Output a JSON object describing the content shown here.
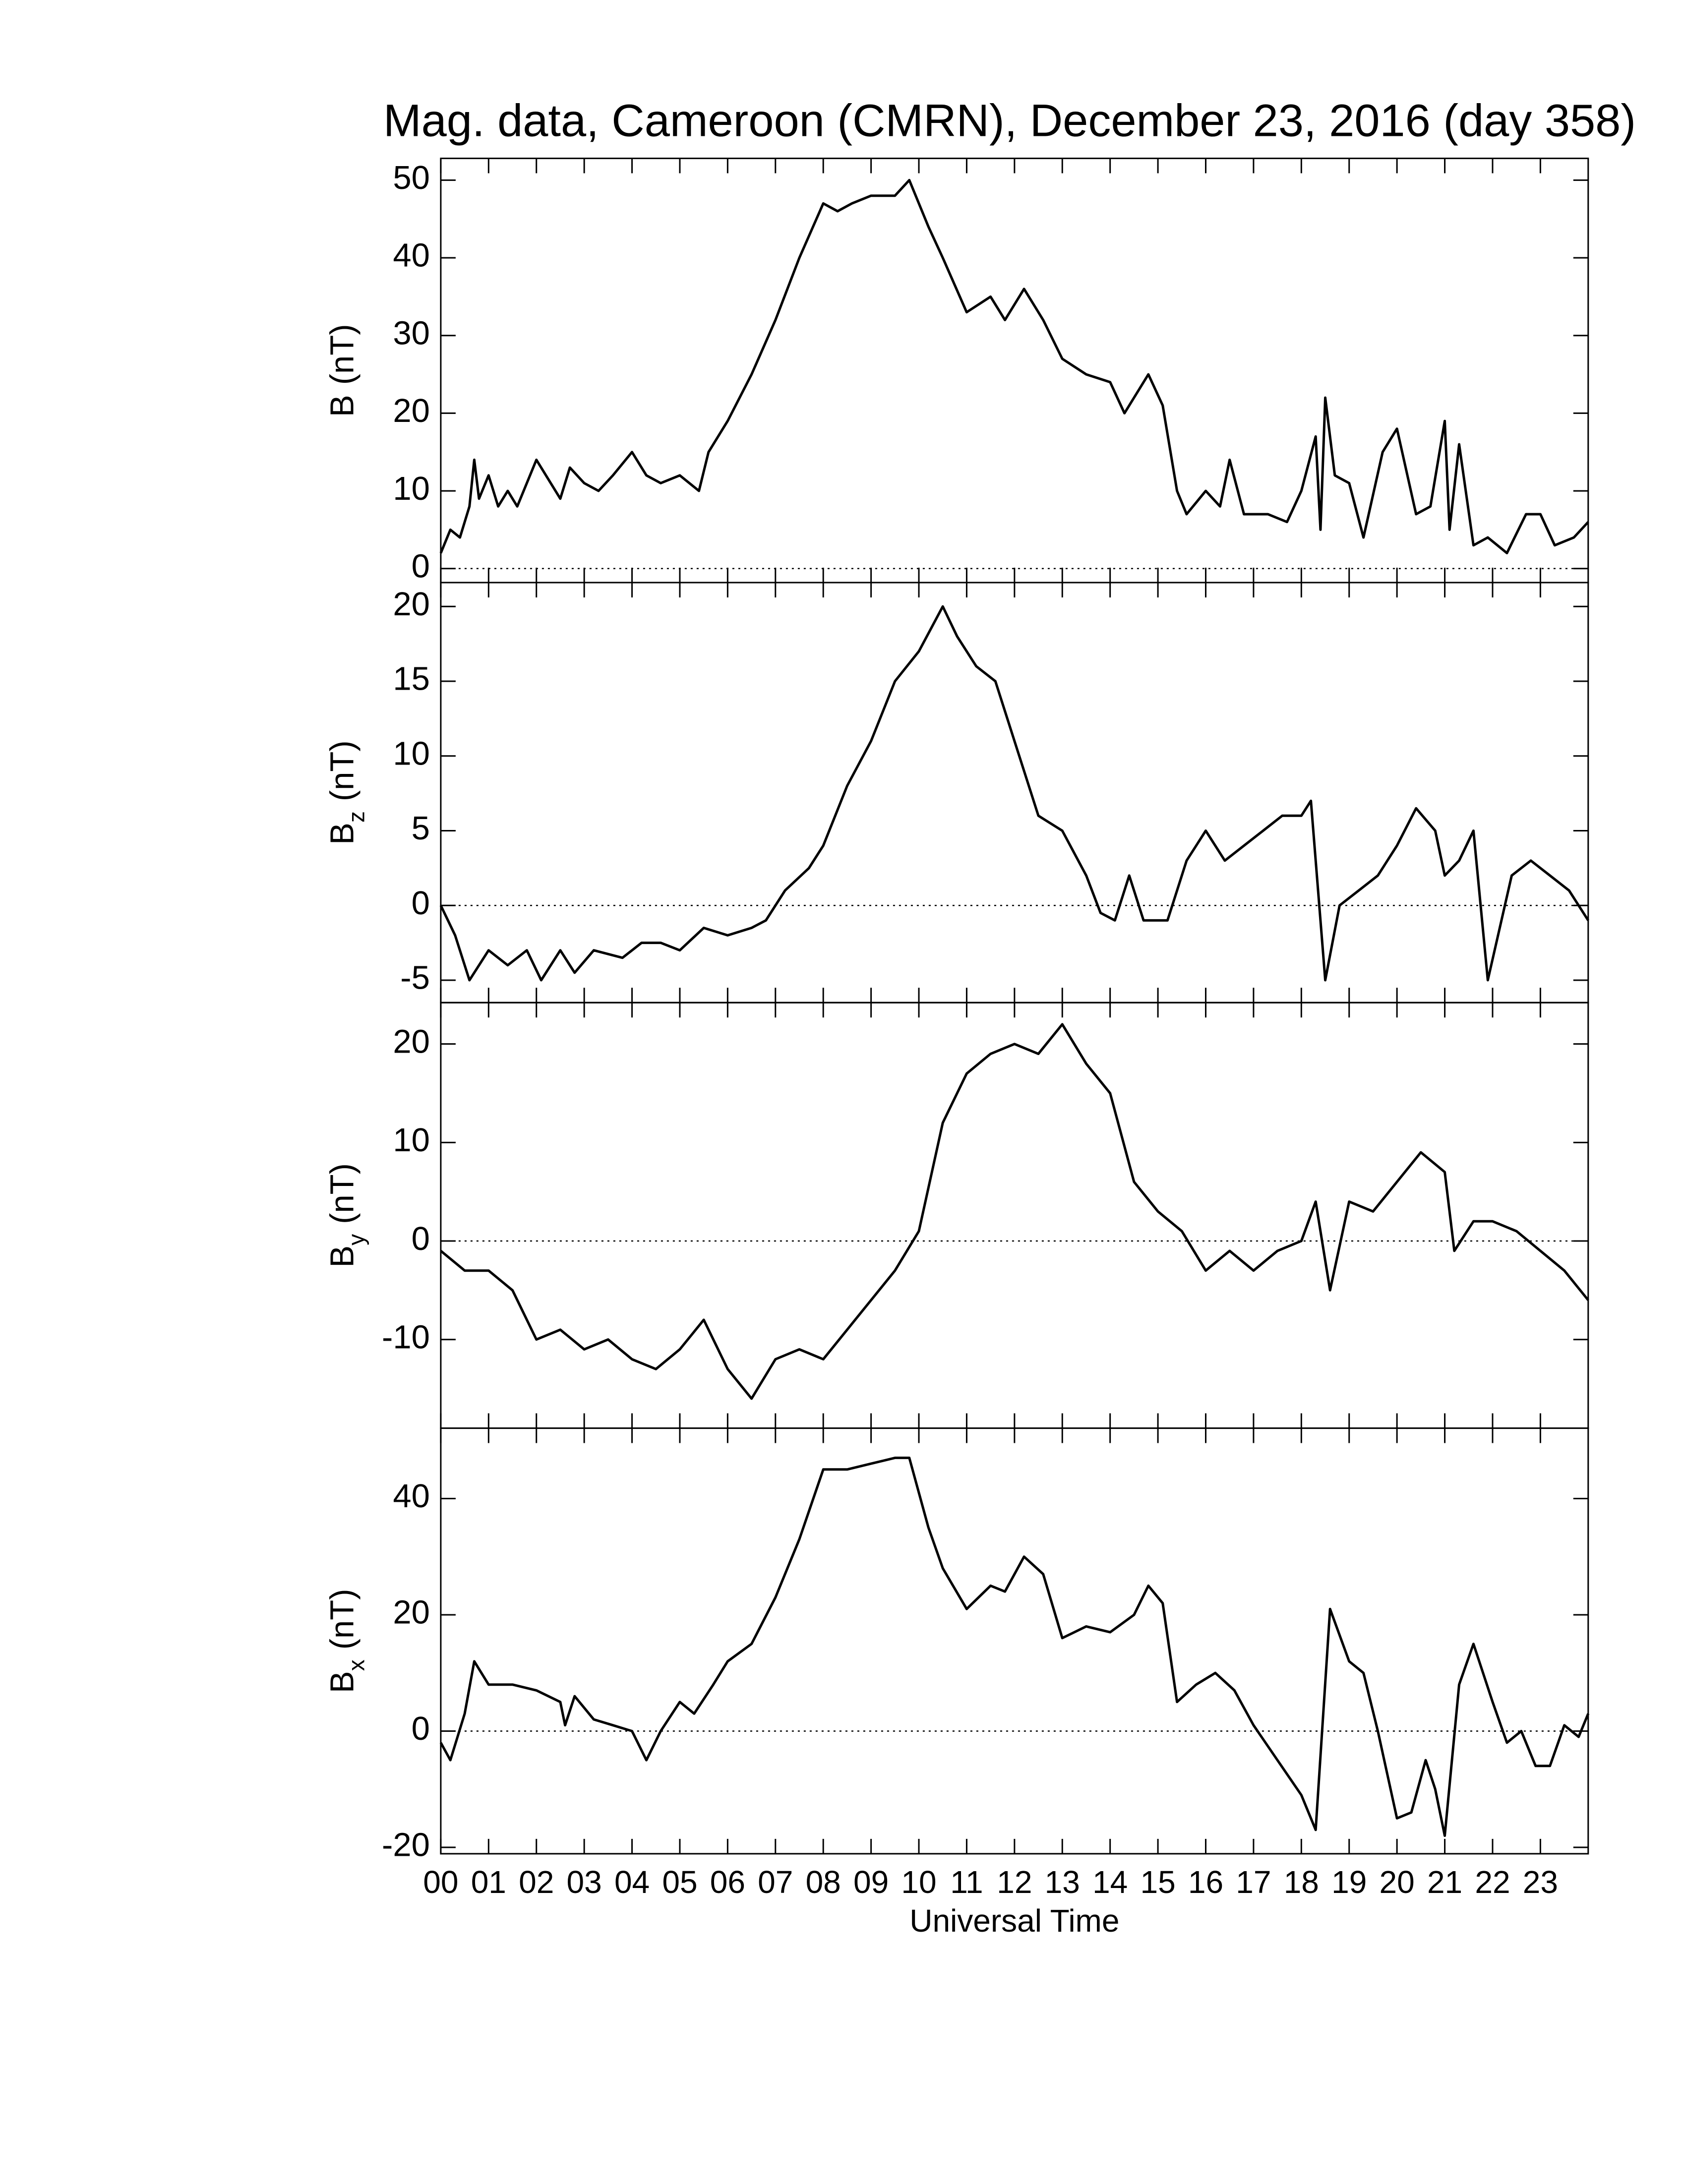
{
  "chart_data": [
    {
      "type": "line",
      "title": "Mag. data, Cameroon (CMRN), December 23, 2016 (day 358)",
      "ylabel": "B",
      "ylabel_unit": "(nT)",
      "color": "#000000",
      "hline": 0,
      "xlim": [
        0,
        24
      ],
      "ylim": [
        -1.8,
        52.8
      ],
      "yticks": [
        0,
        10,
        20,
        30,
        40,
        50
      ],
      "xticks": [
        {
          "value": 0,
          "label": "00"
        },
        {
          "value": 1,
          "label": "01"
        },
        {
          "value": 2,
          "label": "02"
        },
        {
          "value": 3,
          "label": "03"
        },
        {
          "value": 4,
          "label": "04"
        },
        {
          "value": 5,
          "label": "05"
        },
        {
          "value": 6,
          "label": "06"
        },
        {
          "value": 7,
          "label": "07"
        },
        {
          "value": 8,
          "label": "08"
        },
        {
          "value": 9,
          "label": "09"
        },
        {
          "value": 10,
          "label": "10"
        },
        {
          "value": 11,
          "label": "11"
        },
        {
          "value": 12,
          "label": "12"
        },
        {
          "value": 13,
          "label": "13"
        },
        {
          "value": 14,
          "label": "14"
        },
        {
          "value": 15,
          "label": "15"
        },
        {
          "value": 16,
          "label": "16"
        },
        {
          "value": 17,
          "label": "17"
        },
        {
          "value": 18,
          "label": "18"
        },
        {
          "value": 19,
          "label": "19"
        },
        {
          "value": 20,
          "label": "20"
        },
        {
          "value": 21,
          "label": "21"
        },
        {
          "value": 22,
          "label": "22"
        },
        {
          "value": 23,
          "label": "23"
        }
      ],
      "x": [
        0,
        0.2,
        0.4,
        0.6,
        0.7,
        0.8,
        1.0,
        1.2,
        1.4,
        1.6,
        2.0,
        2.3,
        2.5,
        2.7,
        3.0,
        3.3,
        3.6,
        4.0,
        4.3,
        4.6,
        5.0,
        5.4,
        5.6,
        6.0,
        6.5,
        7.0,
        7.5,
        8.0,
        8.3,
        8.6,
        9.0,
        9.5,
        9.8,
        10.2,
        10.5,
        11.0,
        11.5,
        11.8,
        12.2,
        12.6,
        13.0,
        13.5,
        14.0,
        14.3,
        14.8,
        15.1,
        15.4,
        15.6,
        16.0,
        16.3,
        16.5,
        16.8,
        17.3,
        17.7,
        18.0,
        18.3,
        18.4,
        18.5,
        18.7,
        19.0,
        19.3,
        19.7,
        20.0,
        20.4,
        20.7,
        21.0,
        21.1,
        21.3,
        21.6,
        21.9,
        22.3,
        22.7,
        23.0,
        23.3,
        23.7,
        24
      ],
      "values": [
        2,
        5,
        4,
        8,
        14,
        9,
        12,
        8,
        10,
        8,
        14,
        11,
        9,
        13,
        11,
        10,
        12,
        15,
        12,
        11,
        12,
        10,
        15,
        19,
        25,
        32,
        40,
        47,
        46,
        47,
        48,
        48,
        50,
        44,
        40,
        33,
        35,
        32,
        36,
        32,
        27,
        25,
        24,
        20,
        25,
        21,
        10,
        7,
        10,
        8,
        14,
        7,
        7,
        6,
        10,
        17,
        5,
        22,
        12,
        11,
        4,
        15,
        18,
        7,
        8,
        19,
        5,
        16,
        3,
        4,
        2,
        7,
        7,
        3,
        4,
        6
      ]
    },
    {
      "type": "line",
      "ylabel": "B",
      "ylabel_sub": "z",
      "ylabel_unit": "(nT)",
      "color": "#000000",
      "hline": 0,
      "xlim": [
        0,
        24
      ],
      "ylim": [
        -6.5,
        21.6
      ],
      "yticks": [
        -5,
        0,
        5,
        10,
        15,
        20
      ],
      "xticks": [
        0,
        1,
        2,
        3,
        4,
        5,
        6,
        7,
        8,
        9,
        10,
        11,
        12,
        13,
        14,
        15,
        16,
        17,
        18,
        19,
        20,
        21,
        22,
        23
      ],
      "x": [
        0,
        0.3,
        0.6,
        1.0,
        1.4,
        1.8,
        2.1,
        2.5,
        2.8,
        3.2,
        3.8,
        4.2,
        4.6,
        5.0,
        5.5,
        6.0,
        6.5,
        6.8,
        7.2,
        7.7,
        8.0,
        8.5,
        9.0,
        9.5,
        10.0,
        10.5,
        10.8,
        11.2,
        11.6,
        12.0,
        12.5,
        13.0,
        13.5,
        13.8,
        14.1,
        14.4,
        14.7,
        15.2,
        15.6,
        16.0,
        16.4,
        16.8,
        17.2,
        17.6,
        18.0,
        18.2,
        18.5,
        18.8,
        19.2,
        19.6,
        20.0,
        20.4,
        20.8,
        21.0,
        21.3,
        21.6,
        21.9,
        22.4,
        22.8,
        23.2,
        23.6,
        24
      ],
      "values": [
        0,
        -2,
        -5,
        -3,
        -4,
        -3,
        -5,
        -3,
        -4.5,
        -3,
        -3.5,
        -2.5,
        -2.5,
        -3,
        -1.5,
        -2,
        -1.5,
        -1,
        1,
        2.5,
        4,
        8,
        11,
        15,
        17,
        20,
        18,
        16,
        15,
        11,
        6,
        5,
        2,
        -0.5,
        -1,
        2,
        -1,
        -1,
        3,
        5,
        3,
        4,
        5,
        6,
        6,
        7,
        -5,
        0,
        1,
        2,
        4,
        6.5,
        5,
        2,
        3,
        5,
        -5,
        2,
        3,
        2,
        1,
        -1
      ]
    },
    {
      "type": "line",
      "ylabel": "B",
      "ylabel_sub": "y",
      "ylabel_unit": "(nT)",
      "color": "#000000",
      "hline": 0,
      "xlim": [
        0,
        24
      ],
      "ylim": [
        -19,
        24.2
      ],
      "yticks": [
        -10,
        0,
        10,
        20
      ],
      "xticks": [
        0,
        1,
        2,
        3,
        4,
        5,
        6,
        7,
        8,
        9,
        10,
        11,
        12,
        13,
        14,
        15,
        16,
        17,
        18,
        19,
        20,
        21,
        22,
        23
      ],
      "x": [
        0,
        0.5,
        1.0,
        1.5,
        2.0,
        2.5,
        3.0,
        3.5,
        4.0,
        4.5,
        5.0,
        5.5,
        6.0,
        6.5,
        7.0,
        7.5,
        8.0,
        8.5,
        9.0,
        9.5,
        10.0,
        10.5,
        11.0,
        11.5,
        12.0,
        12.5,
        13.0,
        13.5,
        14.0,
        14.5,
        15.0,
        15.5,
        16.0,
        16.5,
        17.0,
        17.5,
        18.0,
        18.3,
        18.6,
        19.0,
        19.5,
        20.0,
        20.5,
        21.0,
        21.2,
        21.6,
        22.0,
        22.5,
        23.0,
        23.5,
        24
      ],
      "values": [
        -1,
        -3,
        -3,
        -5,
        -10,
        -9,
        -11,
        -10,
        -12,
        -13,
        -11,
        -8,
        -13,
        -16,
        -12,
        -11,
        -12,
        -9,
        -6,
        -3,
        1,
        12,
        17,
        19,
        20,
        19,
        22,
        18,
        15,
        6,
        3,
        1,
        -3,
        -1,
        -3,
        -1,
        0,
        4,
        -5,
        4,
        3,
        6,
        9,
        7,
        -1,
        2,
        2,
        1,
        -1,
        -3,
        -6
      ]
    },
    {
      "type": "line",
      "ylabel": "B",
      "ylabel_sub": "x",
      "ylabel_unit": "(nT)",
      "xlabel": "Universal Time",
      "color": "#000000",
      "hline": 0,
      "xlim": [
        0,
        24
      ],
      "ylim": [
        -21.1,
        52.1
      ],
      "yticks": [
        -20,
        0,
        20,
        40
      ],
      "xticks": [
        {
          "value": 0,
          "label": "00"
        },
        {
          "value": 1,
          "label": "01"
        },
        {
          "value": 2,
          "label": "02"
        },
        {
          "value": 3,
          "label": "03"
        },
        {
          "value": 4,
          "label": "04"
        },
        {
          "value": 5,
          "label": "05"
        },
        {
          "value": 6,
          "label": "06"
        },
        {
          "value": 7,
          "label": "07"
        },
        {
          "value": 8,
          "label": "08"
        },
        {
          "value": 9,
          "label": "09"
        },
        {
          "value": 10,
          "label": "10"
        },
        {
          "value": 11,
          "label": "11"
        },
        {
          "value": 12,
          "label": "12"
        },
        {
          "value": 13,
          "label": "13"
        },
        {
          "value": 14,
          "label": "14"
        },
        {
          "value": 15,
          "label": "15"
        },
        {
          "value": 16,
          "label": "16"
        },
        {
          "value": 17,
          "label": "17"
        },
        {
          "value": 18,
          "label": "18"
        },
        {
          "value": 19,
          "label": "19"
        },
        {
          "value": 20,
          "label": "20"
        },
        {
          "value": 21,
          "label": "21"
        },
        {
          "value": 22,
          "label": "22"
        },
        {
          "value": 23,
          "label": "23"
        }
      ],
      "x": [
        0,
        0.2,
        0.5,
        0.7,
        1.0,
        1.5,
        2.0,
        2.5,
        2.6,
        2.8,
        3.2,
        3.6,
        4.0,
        4.3,
        4.6,
        5.0,
        5.3,
        5.7,
        6.0,
        6.5,
        7.0,
        7.5,
        8.0,
        8.5,
        9.0,
        9.5,
        9.8,
        10.2,
        10.5,
        11.0,
        11.5,
        11.8,
        12.2,
        12.6,
        13.0,
        13.5,
        14.0,
        14.5,
        14.8,
        15.1,
        15.4,
        15.8,
        16.2,
        16.6,
        17.0,
        17.5,
        18.0,
        18.3,
        18.6,
        19.0,
        19.3,
        19.6,
        20.0,
        20.3,
        20.6,
        20.8,
        21.0,
        21.3,
        21.6,
        22.0,
        22.3,
        22.6,
        22.9,
        23.2,
        23.5,
        23.8,
        24
      ],
      "values": [
        -2,
        -5,
        3,
        12,
        8,
        8,
        7,
        5,
        1,
        6,
        2,
        1,
        0,
        -5,
        0,
        5,
        3,
        8,
        12,
        15,
        23,
        33,
        45,
        45,
        46,
        47,
        47,
        35,
        28,
        21,
        25,
        24,
        30,
        27,
        16,
        18,
        17,
        20,
        25,
        22,
        5,
        8,
        10,
        7,
        1,
        -5,
        -11,
        -17,
        21,
        12,
        10,
        0,
        -15,
        -14,
        -5,
        -10,
        -18,
        8,
        15,
        5,
        -2,
        0,
        -6,
        -6,
        1,
        -1,
        3
      ]
    }
  ]
}
